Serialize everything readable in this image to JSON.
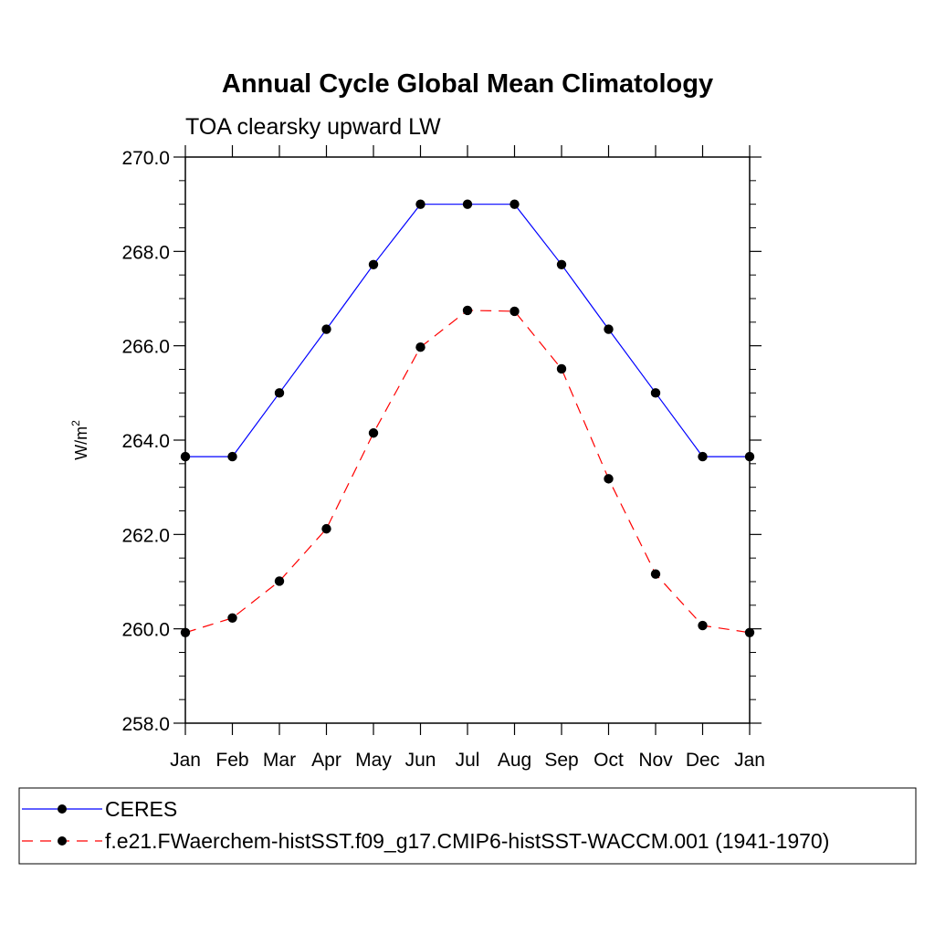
{
  "chart_data": {
    "type": "line",
    "title": "Annual Cycle Global Mean Climatology",
    "subtitle": "TOA clearsky upward LW",
    "xlabel": "",
    "ylabel": "W/m",
    "ylabel_superscript": "2",
    "categories": [
      "Jan",
      "Feb",
      "Mar",
      "Apr",
      "May",
      "Jun",
      "Jul",
      "Aug",
      "Sep",
      "Oct",
      "Nov",
      "Dec",
      "Jan"
    ],
    "ylim": [
      258.0,
      270.0
    ],
    "yticks": [
      258.0,
      260.0,
      262.0,
      264.0,
      266.0,
      268.0,
      270.0
    ],
    "ytick_labels": [
      "258.0",
      "260.0",
      "262.0",
      "264.0",
      "266.0",
      "268.0",
      "270.0"
    ],
    "series": [
      {
        "name": "CERES",
        "color": "#0000ff",
        "dash": "solid",
        "values": [
          263.65,
          263.65,
          265.0,
          266.35,
          267.72,
          269.0,
          269.0,
          269.0,
          267.72,
          266.35,
          265.0,
          263.65,
          263.65
        ]
      },
      {
        "name": "f.e21.FWaerchem-histSST.f09_g17.CMIP6-histSST-WACCM.001 (1941-1970)",
        "color": "#ff0000",
        "dash": "dashed",
        "values": [
          259.92,
          260.23,
          261.01,
          262.12,
          264.15,
          265.97,
          266.75,
          266.73,
          265.51,
          263.18,
          261.16,
          260.07,
          259.92
        ]
      }
    ],
    "legend_position": "bottom"
  }
}
